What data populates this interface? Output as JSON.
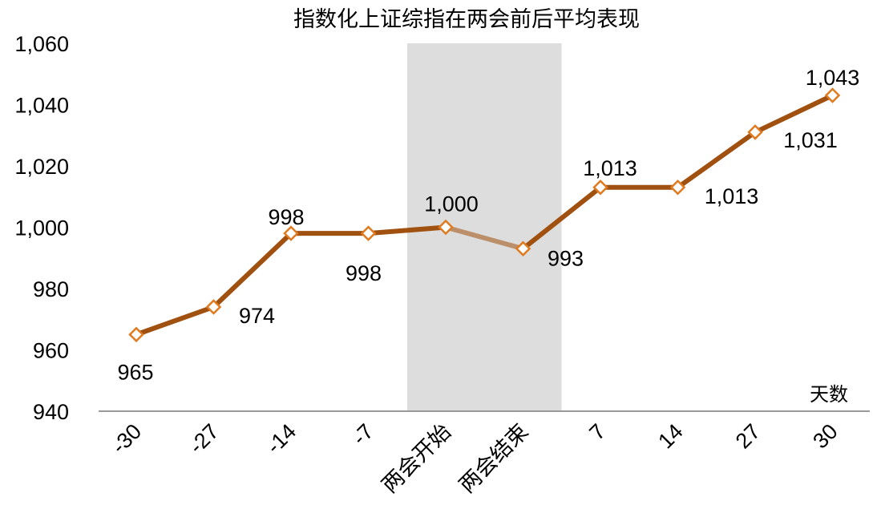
{
  "chart_data": {
    "type": "line",
    "title": "指数化上证综指在两会前后平均表现",
    "x_unit_label": "天数",
    "categories": [
      "-30",
      "-27",
      "-14",
      "-7",
      "两会开始",
      "两会结束",
      "7",
      "14",
      "27",
      "30"
    ],
    "values": [
      965,
      974,
      998,
      998,
      1000,
      993,
      1013,
      1013,
      1031,
      1043
    ],
    "data_labels": [
      "965",
      "974",
      "998",
      "998",
      "1,000",
      "993",
      "1,013",
      "1,013",
      "1,031",
      "1,043"
    ],
    "ylim": [
      940,
      1060
    ],
    "yticks": [
      "940",
      "960",
      "980",
      "1,000",
      "1,020",
      "1,040",
      "1,060"
    ],
    "shaded_range": [
      "两会开始",
      "两会结束"
    ],
    "colors": {
      "line": "#A0500F",
      "line_muted": "#BC8F6B",
      "marker_stroke": "#E07A1F",
      "marker_fill": "#FFFFFF",
      "shade": "#DDDDDD",
      "axis": "#999999"
    }
  }
}
